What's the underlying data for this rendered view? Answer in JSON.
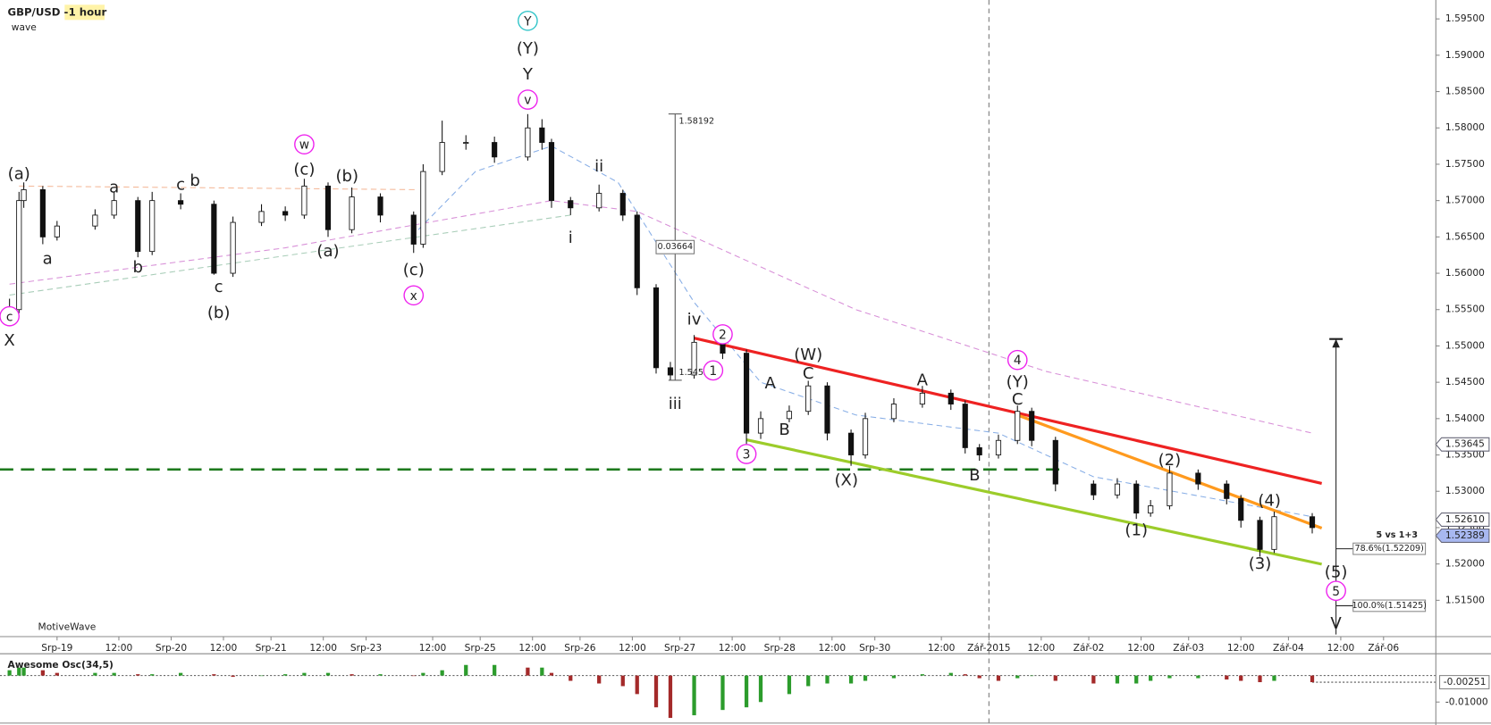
{
  "chart_data": [
    {
      "type": "candlestick",
      "title": "GBP/USD -",
      "subtitle": "1 hour",
      "label": "wave",
      "watermark": "MotiveWave",
      "xlim": [
        0,
        302
      ],
      "ylim": [
        1.51,
        1.5976
      ],
      "xticks": [
        {
          "value": 12,
          "label": "Srp-19"
        },
        {
          "value": 25,
          "label": "12:00"
        },
        {
          "value": 36,
          "label": "Srp-20"
        },
        {
          "value": 47,
          "label": "12:00"
        },
        {
          "value": 57,
          "label": "Srp-21"
        },
        {
          "value": 68,
          "label": "12:00"
        },
        {
          "value": 77,
          "label": "Srp-23"
        },
        {
          "value": 91,
          "label": "12:00"
        },
        {
          "value": 101,
          "label": "Srp-25"
        },
        {
          "value": 112,
          "label": "12:00"
        },
        {
          "value": 122,
          "label": "Srp-26"
        },
        {
          "value": 133,
          "label": "12:00"
        },
        {
          "value": 143,
          "label": "Srp-27"
        },
        {
          "value": 154,
          "label": "12:00"
        },
        {
          "value": 164,
          "label": "Srp-28"
        },
        {
          "value": 175,
          "label": "12:00"
        },
        {
          "value": 184,
          "label": "Srp-30"
        },
        {
          "value": 198,
          "label": "12:00"
        },
        {
          "value": 208,
          "label": "Zář-2015"
        },
        {
          "value": 219,
          "label": "12:00"
        },
        {
          "value": 229,
          "label": "Zář-02"
        },
        {
          "value": 240,
          "label": "12:00"
        },
        {
          "value": 250,
          "label": "Zář-03"
        },
        {
          "value": 261,
          "label": "12:00"
        },
        {
          "value": 271,
          "label": "Zář-04"
        },
        {
          "value": 282,
          "label": "12:00"
        },
        {
          "value": 291,
          "label": "Zář-06"
        }
      ],
      "yticks": [
        {
          "value": 1.515,
          "label": "1.51500"
        },
        {
          "value": 1.52,
          "label": "1.52000"
        },
        {
          "value": 1.525,
          "label": "1.52500"
        },
        {
          "value": 1.53,
          "label": "1.53000"
        },
        {
          "value": 1.535,
          "label": "1.53500"
        },
        {
          "value": 1.54,
          "label": "1.54000"
        },
        {
          "value": 1.545,
          "label": "1.54500"
        },
        {
          "value": 1.55,
          "label": "1.55000"
        },
        {
          "value": 1.555,
          "label": "1.55500"
        },
        {
          "value": 1.56,
          "label": "1.56000"
        },
        {
          "value": 1.565,
          "label": "1.56500"
        },
        {
          "value": 1.57,
          "label": "1.57000"
        },
        {
          "value": 1.575,
          "label": "1.57500"
        },
        {
          "value": 1.58,
          "label": "1.58000"
        },
        {
          "value": 1.585,
          "label": "1.58500"
        },
        {
          "value": 1.59,
          "label": "1.59000"
        },
        {
          "value": 1.595,
          "label": "1.59500"
        }
      ],
      "x": [
        2,
        4,
        5,
        9,
        12,
        20,
        24,
        29,
        32,
        38,
        45,
        49,
        55,
        60,
        64,
        69,
        74,
        80,
        87,
        89,
        93,
        98,
        104,
        111,
        114,
        116,
        120,
        126,
        131,
        134,
        138,
        141,
        146,
        152,
        157,
        160,
        166,
        170,
        174,
        179,
        182,
        188,
        194,
        200,
        203,
        206,
        210,
        214,
        217,
        222,
        230,
        235,
        239,
        242,
        246,
        252,
        258,
        261,
        265,
        268,
        276
      ],
      "open": [
        1.5545,
        1.555,
        1.57,
        1.5715,
        1.565,
        1.5665,
        1.568,
        1.57,
        1.563,
        1.57,
        1.5695,
        1.56,
        1.567,
        1.5685,
        1.568,
        1.572,
        1.566,
        1.5705,
        1.568,
        1.564,
        1.574,
        1.578,
        1.578,
        1.576,
        1.58,
        1.578,
        1.57,
        1.569,
        1.571,
        1.568,
        1.558,
        1.547,
        1.546,
        1.5505,
        1.549,
        1.538,
        1.54,
        1.541,
        1.5445,
        1.538,
        1.535,
        1.54,
        1.542,
        1.5435,
        1.542,
        1.536,
        1.535,
        1.537,
        1.541,
        1.537,
        1.531,
        1.5295,
        1.531,
        1.527,
        1.528,
        1.5325,
        1.531,
        1.529,
        1.526,
        1.522,
        1.5265
      ],
      "high": [
        1.5565,
        1.5712,
        1.5725,
        1.572,
        1.5672,
        1.5688,
        1.5712,
        1.5705,
        1.5712,
        1.571,
        1.57,
        1.5678,
        1.5695,
        1.5692,
        1.573,
        1.5725,
        1.5718,
        1.571,
        1.5685,
        1.575,
        1.581,
        1.579,
        1.5788,
        1.5819,
        1.5812,
        1.5785,
        1.5705,
        1.5722,
        1.5715,
        1.5685,
        1.5585,
        1.5478,
        1.5515,
        1.551,
        1.5495,
        1.541,
        1.5418,
        1.5452,
        1.545,
        1.5385,
        1.5408,
        1.5428,
        1.5445,
        1.544,
        1.5425,
        1.5365,
        1.5378,
        1.5418,
        1.5415,
        1.5375,
        1.5315,
        1.5318,
        1.5315,
        1.5288,
        1.5335,
        1.533,
        1.5315,
        1.5295,
        1.5265,
        1.5272,
        1.527
      ],
      "low": [
        1.553,
        1.5545,
        1.569,
        1.564,
        1.5645,
        1.566,
        1.5675,
        1.5622,
        1.5625,
        1.5688,
        1.5598,
        1.5595,
        1.5665,
        1.5672,
        1.5675,
        1.565,
        1.5655,
        1.567,
        1.5628,
        1.5635,
        1.5735,
        1.577,
        1.5752,
        1.5755,
        1.577,
        1.569,
        1.568,
        1.5685,
        1.5672,
        1.557,
        1.5462,
        1.5453,
        1.5455,
        1.5482,
        1.5365,
        1.5372,
        1.5395,
        1.5405,
        1.537,
        1.5335,
        1.5345,
        1.5395,
        1.5415,
        1.5412,
        1.5352,
        1.5342,
        1.5345,
        1.5365,
        1.5362,
        1.53,
        1.5288,
        1.529,
        1.5262,
        1.5265,
        1.5275,
        1.5302,
        1.5282,
        1.525,
        1.521,
        1.5215,
        1.5242
      ],
      "close": [
        1.555,
        1.57,
        1.5715,
        1.565,
        1.5665,
        1.568,
        1.57,
        1.563,
        1.57,
        1.5695,
        1.56,
        1.567,
        1.5685,
        1.568,
        1.572,
        1.566,
        1.5705,
        1.568,
        1.564,
        1.574,
        1.578,
        1.578,
        1.576,
        1.58,
        1.578,
        1.57,
        1.569,
        1.571,
        1.568,
        1.558,
        1.547,
        1.546,
        1.5505,
        1.549,
        1.538,
        1.54,
        1.541,
        1.5445,
        1.538,
        1.535,
        1.54,
        1.542,
        1.5435,
        1.542,
        1.536,
        1.535,
        1.537,
        1.541,
        1.537,
        1.531,
        1.5295,
        1.531,
        1.527,
        1.528,
        1.5325,
        1.531,
        1.529,
        1.526,
        1.522,
        1.5265,
        1.525
      ],
      "up_color": "#ffffff",
      "down_color": "#111111",
      "lines": [
        {
          "color": "#d890d8",
          "dash": true,
          "width": 1,
          "x": [
            2,
            60,
            116,
            134,
            180,
            220,
            276
          ],
          "values": [
            1.5585,
            1.5635,
            1.57,
            1.5685,
            1.555,
            1.5465,
            1.538
          ]
        },
        {
          "color": "#88aee6",
          "dash": true,
          "width": 1,
          "x": [
            88,
            100,
            116,
            130,
            146,
            160,
            180,
            210,
            230,
            276
          ],
          "values": [
            1.566,
            1.574,
            1.5775,
            1.5725,
            1.556,
            1.545,
            1.5405,
            1.538,
            1.532,
            1.5265
          ]
        },
        {
          "color": "#f4b898",
          "dash": true,
          "width": 1,
          "x": [
            4,
            88
          ],
          "values": [
            1.572,
            1.5715
          ]
        },
        {
          "color": "#a8cdb8",
          "dash": true,
          "width": 1,
          "x": [
            2,
            120
          ],
          "values": [
            1.557,
            1.568
          ]
        },
        {
          "color": "#ee2222",
          "dash": false,
          "width": 3,
          "x": [
            146,
            278
          ],
          "values": [
            1.55108,
            1.53108
          ]
        },
        {
          "color": "#ff9a1e",
          "dash": false,
          "width": 3,
          "x": [
            214,
            278
          ],
          "values": [
            1.54049,
            1.52493
          ]
        },
        {
          "color": "#9ccc2a",
          "dash": false,
          "width": 3,
          "x": [
            157,
            278
          ],
          "values": [
            1.53709,
            1.51997
          ]
        }
      ],
      "hline": {
        "value": 1.533,
        "color": "#1e7a1e"
      },
      "vline": {
        "x": 208
      },
      "price_labels": [
        {
          "value": 1.53645,
          "color": "#ffffff"
        },
        {
          "value": 1.5261,
          "label": "1.52610",
          "color": "#ffffff"
        },
        {
          "value": 1.52389,
          "color": "#a8b8f0"
        }
      ],
      "measure": {
        "x": 142,
        "from": 1.58192,
        "to": 1.54528,
        "difference": 0.03664
      },
      "fib": {
        "x": 281,
        "top": 1.55095,
        "bottom": 1.5103,
        "note": "5 vs 1+3",
        "levels": [
          {
            "value": 1.52209,
            "label": "78.6%(1.52209)"
          },
          {
            "value": 1.51425,
            "label": "100.0%(1.51425)"
          }
        ]
      },
      "wave_labels": [
        {
          "text": "c",
          "x": 2,
          "price": 1.55408,
          "color": "#ee22ee",
          "circle": true
        },
        {
          "text": "X",
          "x": 2,
          "price": 1.55082,
          "color": "#f06a14",
          "circle": false
        },
        {
          "text": "(a)",
          "x": 4,
          "price": 1.57369,
          "color": "#1b4d1b",
          "circle": false
        },
        {
          "text": "a",
          "x": 24,
          "price": 1.57186,
          "color": "#b0a898",
          "circle": false
        },
        {
          "text": "a",
          "x": 10,
          "price": 1.56206,
          "color": "#f0b400",
          "circle": false
        },
        {
          "text": "b",
          "x": 29,
          "price": 1.56088,
          "color": "#b0a898",
          "circle": false
        },
        {
          "text": "c",
          "x": 38,
          "price": 1.57225,
          "color": "#b0a898",
          "circle": false
        },
        {
          "text": "b",
          "x": 41,
          "price": 1.57278,
          "color": "#f0b400",
          "circle": false
        },
        {
          "text": "c",
          "x": 46,
          "price": 1.55814,
          "color": "#f0b400",
          "circle": false
        },
        {
          "text": "(b)",
          "x": 46,
          "price": 1.55461,
          "color": "#1b4d1b",
          "circle": false
        },
        {
          "text": "w",
          "x": 64,
          "price": 1.57774,
          "color": "#ee22ee",
          "circle": true
        },
        {
          "text": "(c)",
          "x": 64,
          "price": 1.57435,
          "color": "#1b4d1b",
          "circle": false
        },
        {
          "text": "(b)",
          "x": 73,
          "price": 1.57343,
          "color": "#1b4d1b",
          "circle": false
        },
        {
          "text": "(a)",
          "x": 69,
          "price": 1.5631,
          "color": "#1b4d1b",
          "circle": false
        },
        {
          "text": "(c)",
          "x": 87,
          "price": 1.56049,
          "color": "#1b4d1b",
          "circle": false
        },
        {
          "text": "x",
          "x": 87,
          "price": 1.55696,
          "color": "#ee22ee",
          "circle": true
        },
        {
          "text": "Y",
          "x": 111,
          "price": 1.59474,
          "color": "#2fc4c8",
          "circle": true
        },
        {
          "text": "(Y)",
          "x": 111,
          "price": 1.59095,
          "color": "#8ab020",
          "circle": false
        },
        {
          "text": "Y",
          "x": 111,
          "price": 1.58742,
          "color": "#f06a14",
          "circle": false
        },
        {
          "text": "v",
          "x": 111,
          "price": 1.58389,
          "color": "#ee22ee",
          "circle": true
        },
        {
          "text": "ii",
          "x": 126,
          "price": 1.57474,
          "color": "#f06a14",
          "circle": false
        },
        {
          "text": "i",
          "x": 120,
          "price": 1.56493,
          "color": "#f06a14",
          "circle": false
        },
        {
          "text": "iv",
          "x": 146,
          "price": 1.55369,
          "color": "#f06a14",
          "circle": false
        },
        {
          "text": "iii",
          "x": 142,
          "price": 1.54206,
          "color": "#f06a14",
          "circle": false
        },
        {
          "text": "2",
          "x": 152,
          "price": 1.5516,
          "color": "#ee22ee",
          "circle": true
        },
        {
          "text": "1",
          "x": 150,
          "price": 1.54663,
          "color": "#ee22ee",
          "circle": true
        },
        {
          "text": "3",
          "x": 157,
          "price": 1.53513,
          "color": "#ee22ee",
          "circle": true
        },
        {
          "text": "A",
          "x": 162,
          "price": 1.54493,
          "color": "#b0a898",
          "circle": false
        },
        {
          "text": "B",
          "x": 165,
          "price": 1.53853,
          "color": "#b0a898",
          "circle": false
        },
        {
          "text": "C",
          "x": 170,
          "price": 1.54624,
          "color": "#b0a898",
          "circle": false
        },
        {
          "text": "(W)",
          "x": 170,
          "price": 1.54886,
          "color": "#1b4d1b",
          "circle": false
        },
        {
          "text": "(X)",
          "x": 178,
          "price": 1.5316,
          "color": "#1b4d1b",
          "circle": false
        },
        {
          "text": "A",
          "x": 194,
          "price": 1.54533,
          "color": "#b0a898",
          "circle": false
        },
        {
          "text": "B",
          "x": 205,
          "price": 1.53225,
          "color": "#b0a898",
          "circle": false
        },
        {
          "text": "4",
          "x": 214,
          "price": 1.54807,
          "color": "#ee22ee",
          "circle": true
        },
        {
          "text": "(Y)",
          "x": 214,
          "price": 1.54506,
          "color": "#1b4d1b",
          "circle": false
        },
        {
          "text": "C",
          "x": 214,
          "price": 1.54271,
          "color": "#b0a898",
          "circle": false
        },
        {
          "text": "(1)",
          "x": 239,
          "price": 1.52467,
          "color": "#1b4d1b",
          "circle": false
        },
        {
          "text": "(2)",
          "x": 246,
          "price": 1.53435,
          "color": "#1b4d1b",
          "circle": false
        },
        {
          "text": "(3)",
          "x": 265,
          "price": 1.5201,
          "color": "#1b4d1b",
          "circle": false
        },
        {
          "text": "(4)",
          "x": 267,
          "price": 1.52872,
          "color": "#1b4d1b",
          "circle": false
        },
        {
          "text": "(5)",
          "x": 281,
          "price": 1.51892,
          "color": "#1b4d1b",
          "circle": false
        },
        {
          "text": "5",
          "x": 281,
          "price": 1.5163,
          "color": "#ee22ee",
          "circle": true
        },
        {
          "text": "V",
          "x": 281,
          "price": 1.51186,
          "color": "#f06a14",
          "circle": false
        }
      ]
    },
    {
      "type": "bar",
      "title": "Awesome Osc(34,5)",
      "xlim": [
        0,
        302
      ],
      "ylim": [
        -0.0176,
        0.0068
      ],
      "yticks": [
        {
          "value": -0.01,
          "label": "-0.01000"
        }
      ],
      "current": -0.00251,
      "up_color": "#2c9c2c",
      "down_color": "#a42a2a",
      "x": [
        2,
        4,
        5,
        9,
        12,
        20,
        24,
        29,
        32,
        38,
        45,
        49,
        55,
        60,
        64,
        69,
        74,
        80,
        87,
        89,
        93,
        98,
        104,
        111,
        114,
        116,
        120,
        126,
        131,
        134,
        138,
        141,
        146,
        152,
        157,
        160,
        166,
        170,
        174,
        179,
        182,
        188,
        194,
        200,
        203,
        206,
        210,
        214,
        217,
        222,
        230,
        235,
        239,
        242,
        246,
        252,
        258,
        261,
        265,
        268,
        276
      ],
      "values": [
        0.002,
        0.003,
        0.003,
        0.002,
        0.001,
        0.001,
        0.001,
        0.0005,
        0.0005,
        0.001,
        0.0005,
        -0.0005,
        0.0,
        0.0005,
        0.001,
        0.001,
        0.0005,
        0.0005,
        0.0,
        0.001,
        0.002,
        0.004,
        0.004,
        0.003,
        0.003,
        0.001,
        -0.002,
        -0.003,
        -0.004,
        -0.007,
        -0.012,
        -0.016,
        -0.015,
        -0.013,
        -0.012,
        -0.01,
        -0.007,
        -0.004,
        -0.003,
        -0.003,
        -0.002,
        -0.001,
        0.0005,
        0.001,
        0.0005,
        -0.001,
        -0.002,
        -0.001,
        0.0,
        -0.002,
        -0.003,
        -0.003,
        -0.003,
        -0.002,
        -0.001,
        -0.001,
        -0.0015,
        -0.002,
        -0.0025,
        -0.002,
        -0.0025
      ]
    }
  ]
}
